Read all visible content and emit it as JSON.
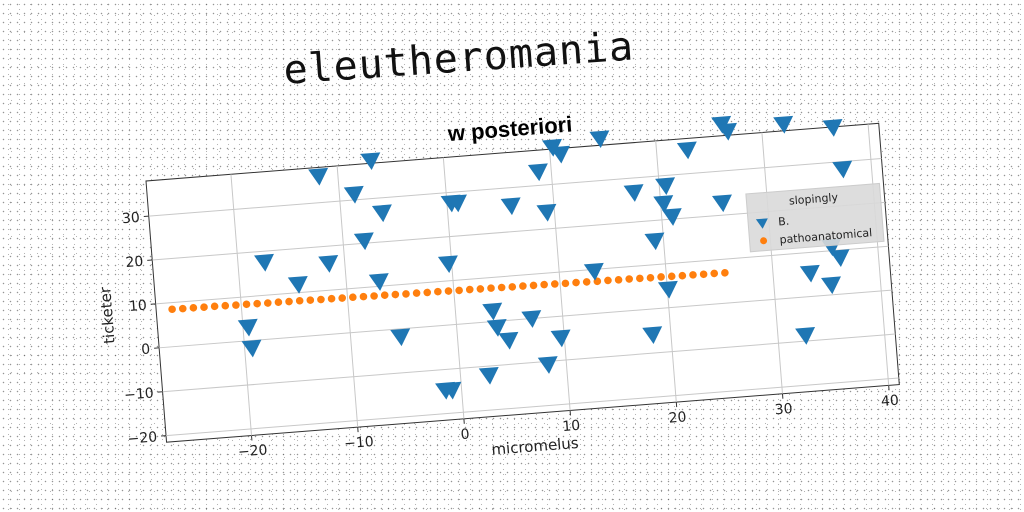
{
  "heading": "eleutheromania",
  "chart_data": {
    "type": "scatter",
    "title": "w posteriori",
    "xlabel": "micromelus",
    "ylabel": "ticketer",
    "xlim": [
      -28,
      41
    ],
    "ylim": [
      -21.5,
      38
    ],
    "xticks": [
      -20,
      -10,
      0,
      10,
      20,
      30,
      40
    ],
    "yticks": [
      -20,
      -10,
      0,
      10,
      20,
      30
    ],
    "grid": true,
    "legend": {
      "title": "slopingly",
      "placement": "center-right"
    },
    "series": [
      {
        "name": "B.",
        "marker": "triangle-down",
        "color": "#1f77b4",
        "x": [
          -19.5,
          -19.3,
          -17.5,
          -14.5,
          -11.8,
          -11.5,
          -8.6,
          -8.0,
          -6.9,
          -6.8,
          -6.1,
          -5.3,
          -1.5,
          -0.3,
          -0.9,
          0.4,
          1.0,
          2.7,
          3.5,
          3.8,
          4.8,
          6.0,
          7.1,
          8.3,
          8.8,
          9.3,
          9.7,
          10.3,
          11.0,
          13.3,
          14.8,
          17.6,
          18.3,
          19.2,
          20.1,
          20.3,
          20.6,
          21.0,
          22.9,
          25.8,
          26.3,
          26.8,
          32.1,
          32.6,
          33.5,
          35.4,
          35.7,
          36.4,
          36.7,
          37.3
        ],
        "y": [
          3.0,
          -1.8,
          17.4,
          11.8,
          35.9,
          16.0,
          31.2,
          20.5,
          11.0,
          38.5,
          26.5,
          -1.9,
          -14.8,
          13.8,
          -14.9,
          27.5,
          27.4,
          -12.2,
          2.3,
          -1.5,
          -4.6,
          25.8,
          -0.1,
          -10.8,
          33.0,
          23.7,
          -5.0,
          38.3,
          36.6,
          9.5,
          39.4,
          26.6,
          -5.9,
          15.3,
          4.1,
          23.6,
          27.6,
          20.5,
          35.3,
          22.7,
          40.5,
          38.8,
          39.4,
          -8.8,
          5.2,
          2.2,
          10.8,
          8.2,
          37.8,
          28.2
        ]
      },
      {
        "name": "pathoanatomical",
        "marker": "circle",
        "color": "#ff7f0e",
        "x": [
          -26.5,
          -25.5,
          -24.5,
          -23.5,
          -22.5,
          -21.5,
          -20.5,
          -19.5,
          -18.5,
          -17.5,
          -16.5,
          -15.5,
          -14.5,
          -13.5,
          -12.5,
          -11.5,
          -10.5,
          -9.5,
          -8.5,
          -7.5,
          -6.5,
          -5.5,
          -4.5,
          -3.5,
          -2.5,
          -1.5,
          -0.5,
          0.5,
          1.5,
          2.5,
          3.5,
          4.5,
          5.5,
          6.5,
          7.5,
          8.5,
          9.5,
          10.5,
          11.5,
          12.5,
          13.5,
          14.5,
          15.5,
          16.5,
          17.5,
          18.5,
          19.5,
          20.5,
          21.5,
          22.5,
          23.5,
          24.5,
          25.5
        ],
        "y": [
          8.5,
          8.45,
          8.45,
          8.4,
          8.4,
          8.35,
          8.3,
          8.3,
          8.25,
          8.2,
          8.2,
          8.15,
          8.15,
          8.1,
          8.05,
          8.05,
          8.0,
          8.0,
          7.95,
          7.9,
          7.9,
          7.85,
          7.8,
          7.8,
          7.75,
          7.75,
          7.7,
          7.65,
          7.65,
          7.6,
          7.6,
          7.55,
          7.5,
          7.5,
          7.45,
          7.45,
          7.4,
          7.35,
          7.35,
          7.3,
          7.25,
          7.25,
          7.2,
          7.2,
          7.15,
          7.1,
          7.1,
          7.05,
          7.0,
          7.0,
          6.95,
          6.95,
          6.9
        ]
      }
    ]
  }
}
